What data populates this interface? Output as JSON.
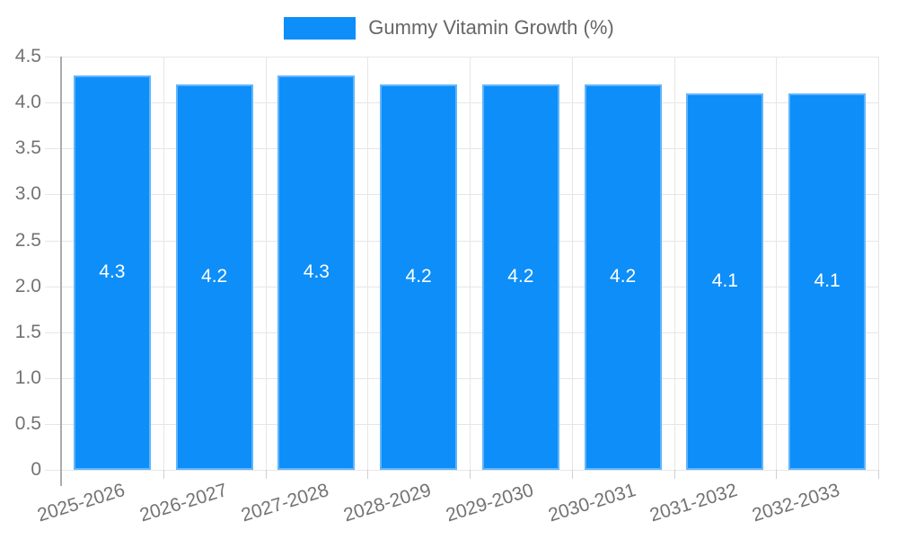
{
  "legend": {
    "label": "Gummy Vitamin Growth (%)"
  },
  "colors": {
    "bar_fill": "#0d8ef9",
    "bar_border": "rgba(255,255,255,0.35)",
    "grid": "#e6e6e6",
    "axis": "#ababab",
    "bottom_tick": "#cfcfcf",
    "tick_label": "#737373",
    "legend_text": "#666666",
    "value_label": "#ffffff"
  },
  "chart_data": {
    "type": "bar",
    "title": "Gummy Vitamin Growth (%)",
    "categories": [
      "2025-2026",
      "2026-2027",
      "2027-2028",
      "2028-2029",
      "2029-2030",
      "2030-2031",
      "2031-2032",
      "2032-2033"
    ],
    "values": [
      4.3,
      4.2,
      4.3,
      4.2,
      4.2,
      4.2,
      4.1,
      4.1
    ],
    "bar_labels": [
      "4.3",
      "4.2",
      "4.3",
      "4.2",
      "4.2",
      "4.2",
      "4.1",
      "4.1"
    ],
    "xlabel": "",
    "ylabel": "",
    "ylim": [
      0,
      4.5
    ],
    "yticks": [
      0,
      0.5,
      1.0,
      1.5,
      2.0,
      2.5,
      3.0,
      3.5,
      4.0,
      4.5
    ],
    "ytick_labels": [
      "0",
      "0.5",
      "1.0",
      "1.5",
      "2.0",
      "2.5",
      "3.0",
      "3.5",
      "4.0",
      "4.5"
    ],
    "grid": true,
    "legend_position": "top"
  }
}
